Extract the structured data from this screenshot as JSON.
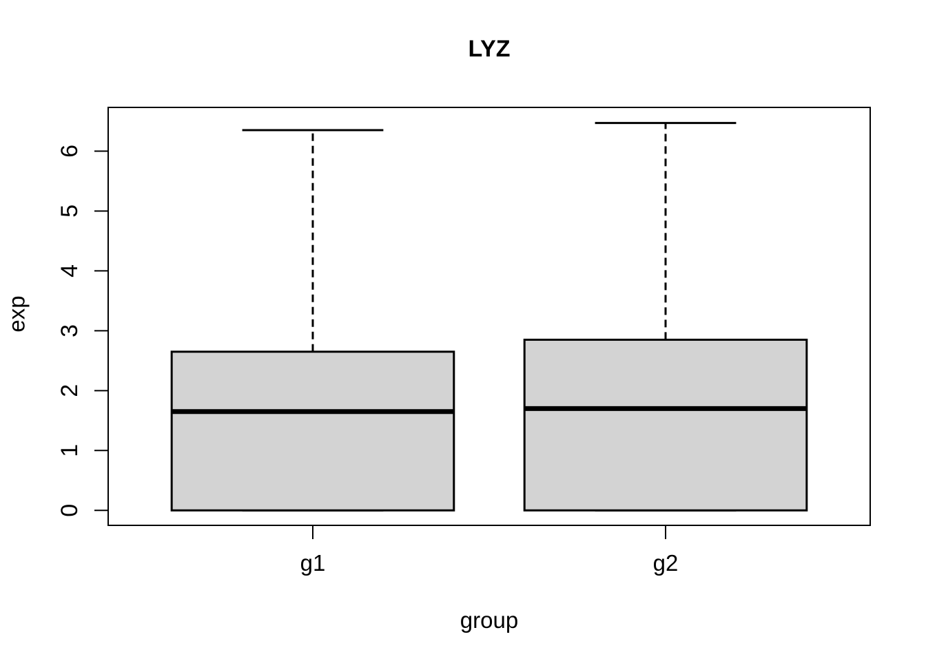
{
  "chart_data": {
    "type": "boxplot",
    "title": "LYZ",
    "xlabel": "group",
    "ylabel": "exp",
    "categories": [
      "g1",
      "g2"
    ],
    "y_ticks": [
      0,
      1,
      2,
      3,
      4,
      5,
      6
    ],
    "ylim": [
      -0.25,
      6.73
    ],
    "grid": false,
    "legend": "none",
    "whisker_line_style": "dashed",
    "box_fill_color": "#d3d3d3",
    "line_color": "#000000",
    "background_color": "#ffffff",
    "series": [
      {
        "name": "g1",
        "lower_whisker": 0,
        "q1": 0,
        "median": 1.65,
        "q3": 2.65,
        "upper_whisker": 6.35,
        "outliers": []
      },
      {
        "name": "g2",
        "lower_whisker": 0,
        "q1": 0,
        "median": 1.7,
        "q3": 2.85,
        "upper_whisker": 6.47,
        "outliers": []
      }
    ]
  }
}
